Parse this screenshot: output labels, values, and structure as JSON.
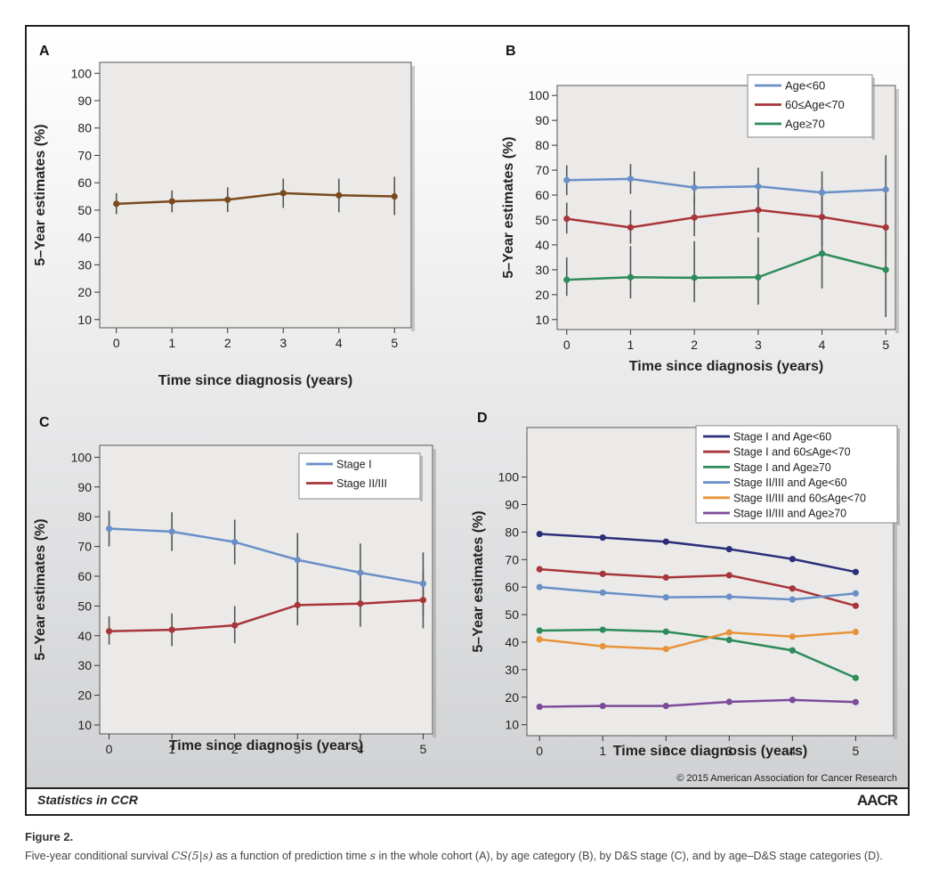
{
  "footer": {
    "left": "Statistics in CCR",
    "right": "AACR",
    "copyright": "© 2015 American Association for Cancer Research"
  },
  "figure": {
    "title": "Figure 2.",
    "caption_pre": "Five-year conditional survival ",
    "caption_math": "CS(5|s)",
    "caption_mid": " as a function of prediction time ",
    "caption_var": "s",
    "caption_post": " in the whole cohort (A), by age category (B), by D&S stage (C), and by age–D&S stage categories (D)."
  },
  "chart_data": [
    {
      "panel": "A",
      "type": "line",
      "xlabel": "Time since diagnosis (years)",
      "ylabel": "5–Year estimates (%)",
      "x": [
        0,
        1,
        2,
        3,
        4,
        5
      ],
      "yticks": [
        10,
        20,
        30,
        40,
        50,
        60,
        70,
        80,
        90,
        100
      ],
      "ylim": [
        7,
        104
      ],
      "xlim": [
        -0.3,
        5.3
      ],
      "legend": [],
      "series": [
        {
          "name": "",
          "color": "#7a4a1e",
          "values": [
            52.3,
            53.2,
            53.8,
            56.2,
            55.4,
            55.0
          ],
          "err_low": [
            48.5,
            49.2,
            49.3,
            50.8,
            49.2,
            48.2
          ],
          "err_high": [
            56.2,
            57.2,
            58.3,
            61.5,
            61.5,
            62.2
          ]
        }
      ]
    },
    {
      "panel": "B",
      "type": "line",
      "xlabel": "Time since diagnosis (years)",
      "ylabel": "5–Year estimates (%)",
      "x": [
        0,
        1,
        2,
        3,
        4,
        5
      ],
      "yticks": [
        10,
        20,
        30,
        40,
        50,
        60,
        70,
        80,
        90,
        100
      ],
      "ylim": [
        6,
        104
      ],
      "xlim": [
        -0.15,
        5.15
      ],
      "legend": [
        "Age<60",
        "60≤Age<70",
        "Age≥70"
      ],
      "series": [
        {
          "name": "Age<60",
          "color": "#6a8fc7",
          "values": [
            66.0,
            66.5,
            63.0,
            63.5,
            61.0,
            62.2
          ],
          "err_low": [
            60.0,
            60.5,
            56.5,
            56.0,
            52.0,
            47.0
          ],
          "err_high": [
            72.0,
            72.5,
            69.5,
            71.0,
            69.5,
            76.0
          ]
        },
        {
          "name": "60≤Age<70",
          "color": "#a8353a",
          "values": [
            50.5,
            47.0,
            51.0,
            54.0,
            51.2,
            47.0
          ],
          "err_low": [
            44.5,
            40.5,
            43.5,
            45.0,
            39.5,
            34.0
          ],
          "err_high": [
            57.0,
            54.0,
            59.0,
            63.0,
            63.0,
            60.0
          ]
        },
        {
          "name": "Age≥70",
          "color": "#2e8b5a",
          "values": [
            26.0,
            27.0,
            26.8,
            27.0,
            36.5,
            30.0
          ],
          "err_low": [
            19.5,
            18.5,
            17.0,
            16.0,
            22.5,
            11.0
          ],
          "err_high": [
            35.0,
            39.5,
            41.5,
            43.0,
            50.5,
            49.0
          ]
        }
      ]
    },
    {
      "panel": "C",
      "type": "line",
      "xlabel": "Time since diagnosis (years)",
      "ylabel": "5–Year estimates (%)",
      "x": [
        0,
        1,
        2,
        3,
        4,
        5
      ],
      "yticks": [
        10,
        20,
        30,
        40,
        50,
        60,
        70,
        80,
        90,
        100
      ],
      "ylim": [
        7,
        104
      ],
      "xlim": [
        -0.15,
        5.15
      ],
      "legend": [
        "Stage I",
        "Stage II/III"
      ],
      "series": [
        {
          "name": "Stage I",
          "color": "#6a8fc7",
          "values": [
            76.0,
            75.0,
            71.5,
            65.5,
            61.2,
            57.5
          ],
          "err_low": [
            70.0,
            68.5,
            64.0,
            56.5,
            51.5,
            47.0
          ],
          "err_high": [
            82.0,
            81.5,
            79.0,
            74.5,
            71.0,
            68.0
          ]
        },
        {
          "name": "Stage II/III",
          "color": "#a8353a",
          "values": [
            41.5,
            42.0,
            43.5,
            50.3,
            50.8,
            52.0
          ],
          "err_low": [
            37.0,
            36.5,
            37.5,
            43.5,
            43.0,
            42.5
          ],
          "err_high": [
            46.5,
            47.5,
            50.0,
            58.0,
            59.0,
            62.0
          ]
        }
      ]
    },
    {
      "panel": "D",
      "type": "line",
      "xlabel": "Time since diagnosis (years)",
      "ylabel": "5–Year estimates (%)",
      "x": [
        0,
        1,
        2,
        3,
        4,
        5
      ],
      "yticks": [
        10,
        20,
        30,
        40,
        50,
        60,
        70,
        80,
        90,
        100
      ],
      "ylim": [
        6,
        118
      ],
      "xlim": [
        -0.2,
        5.6
      ],
      "legend": [
        "Stage I and Age<60",
        "Stage I and 60≤Age<70",
        "Stage I and Age≥70",
        "Stage II/III and Age<60",
        "Stage II/III and 60≤Age<70",
        "Stage II/III and Age≥70"
      ],
      "series": [
        {
          "name": "Stage I and Age<60",
          "color": "#2b2f7a",
          "values": [
            79.3,
            78.0,
            76.5,
            73.8,
            70.2,
            65.5
          ]
        },
        {
          "name": "Stage I and 60≤Age<70",
          "color": "#a8353a",
          "values": [
            66.5,
            64.8,
            63.5,
            64.3,
            59.5,
            53.2
          ]
        },
        {
          "name": "Stage I and Age≥70",
          "color": "#2e8b5a",
          "values": [
            44.2,
            44.5,
            43.8,
            40.8,
            37.0,
            27.0
          ]
        },
        {
          "name": "Stage II/III and Age<60",
          "color": "#6a8fc7",
          "values": [
            60.0,
            58.0,
            56.3,
            56.5,
            55.5,
            57.7
          ]
        },
        {
          "name": "Stage II/III and 60≤Age<70",
          "color": "#e8933a",
          "values": [
            41.0,
            38.5,
            37.5,
            43.5,
            42.0,
            43.7
          ]
        },
        {
          "name": "Stage II/III and Age≥70",
          "color": "#7d4a9a",
          "values": [
            16.5,
            16.8,
            16.8,
            18.3,
            19.0,
            18.2
          ]
        }
      ]
    }
  ]
}
